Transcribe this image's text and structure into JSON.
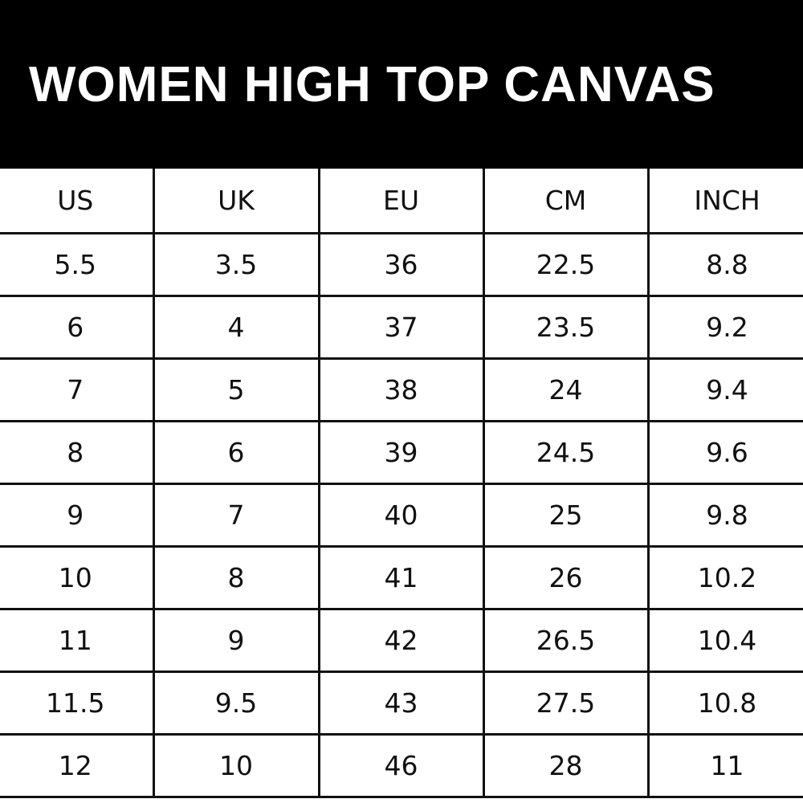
{
  "title": "WOMEN HIGH TOP CANVAS",
  "table": {
    "headers": [
      "US",
      "UK",
      "EU",
      "CM",
      "INCH"
    ],
    "rows": [
      [
        "5.5",
        "3.5",
        "36",
        "22.5",
        "8.8"
      ],
      [
        "6",
        "4",
        "37",
        "23.5",
        "9.2"
      ],
      [
        "7",
        "5",
        "38",
        "24",
        "9.4"
      ],
      [
        "8",
        "6",
        "39",
        "24.5",
        "9.6"
      ],
      [
        "9",
        "7",
        "40",
        "25",
        "9.8"
      ],
      [
        "10",
        "8",
        "41",
        "26",
        "10.2"
      ],
      [
        "11",
        "9",
        "42",
        "26.5",
        "10.4"
      ],
      [
        "11.5",
        "9.5",
        "43",
        "27.5",
        "10.8"
      ],
      [
        "12",
        "10",
        "46",
        "28",
        "11"
      ]
    ]
  }
}
